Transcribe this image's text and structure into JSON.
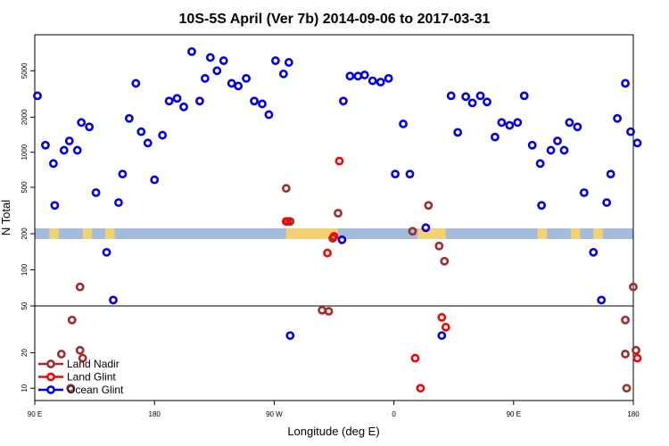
{
  "chart_data": {
    "type": "scatter",
    "title": "10S-5S April (Ver 7b)   2014-09-06 to 2017-03-31",
    "xlabel": "Longitude (deg E)",
    "ylabel": "N Total",
    "x_range": [
      90,
      540
    ],
    "x_ticks": [
      {
        "value": 90,
        "label": "90 E"
      },
      {
        "value": 180,
        "label": "180"
      },
      {
        "value": 270,
        "label": "90 W"
      },
      {
        "value": 360,
        "label": "0"
      },
      {
        "value": 450,
        "label": "90 E"
      },
      {
        "value": 540,
        "label": "180"
      }
    ],
    "upper_panel": {
      "scale": "log",
      "ylim": [
        200,
        10000
      ],
      "y_ticks": [
        {
          "value": 200,
          "label": "200"
        },
        {
          "value": 500,
          "label": "500"
        },
        {
          "value": 1000,
          "label": "1000"
        },
        {
          "value": 2000,
          "label": "2000"
        },
        {
          "value": 5000,
          "label": "5000"
        }
      ]
    },
    "middle_panel": {
      "scale": "log",
      "ylim": [
        50,
        200
      ],
      "y_ticks": [
        {
          "value": 100,
          "label": "100"
        },
        {
          "value": 50,
          "label": "50"
        }
      ]
    },
    "lower_panel": {
      "scale": "log",
      "ylim": [
        8,
        50
      ],
      "y_ticks": [
        {
          "value": 20,
          "label": "20"
        },
        {
          "value": 10,
          "label": "10"
        }
      ]
    },
    "legend_position": "bottom-left",
    "series": [
      {
        "name": "Land Nadir",
        "color": "#a52a2a",
        "points": [
          [
            110,
            19.5
          ],
          [
            117,
            10
          ],
          [
            118,
            38
          ],
          [
            124,
            72
          ],
          [
            124,
            21
          ],
          [
            126,
            18
          ],
          [
            279,
            490
          ],
          [
            280,
            255
          ],
          [
            282,
            255
          ],
          [
            306,
            46
          ],
          [
            311,
            45
          ],
          [
            314,
            183
          ],
          [
            318,
            300
          ],
          [
            374,
            210
          ],
          [
            386,
            350
          ],
          [
            394,
            158
          ],
          [
            398,
            118
          ],
          [
            534,
            38
          ],
          [
            534,
            19.5
          ],
          [
            535,
            10
          ],
          [
            540,
            72
          ],
          [
            542,
            21
          ]
        ]
      },
      {
        "name": "Land Glint",
        "color": "#ff0000",
        "points": [
          [
            279,
            255
          ],
          [
            310,
            138
          ],
          [
            315,
            190
          ],
          [
            319,
            840
          ],
          [
            376,
            18
          ],
          [
            380,
            10
          ],
          [
            396,
            40
          ],
          [
            399,
            33
          ],
          [
            543,
            18
          ]
        ]
      },
      {
        "name": "Ocean Glint",
        "color": "#0000ee",
        "points": [
          [
            92,
            3050
          ],
          [
            98,
            1150
          ],
          [
            104,
            800
          ],
          [
            105,
            350
          ],
          [
            112,
            1040
          ],
          [
            116,
            1250
          ],
          [
            122,
            1040
          ],
          [
            125,
            1800
          ],
          [
            131,
            1650
          ],
          [
            136,
            450
          ],
          [
            144,
            140
          ],
          [
            149,
            56
          ],
          [
            153,
            370
          ],
          [
            156,
            650
          ],
          [
            161,
            1950
          ],
          [
            166,
            3900
          ],
          [
            170,
            1500
          ],
          [
            175,
            1200
          ],
          [
            180,
            580
          ],
          [
            186,
            1400
          ],
          [
            191,
            2750
          ],
          [
            197,
            2900
          ],
          [
            202,
            2450
          ],
          [
            208,
            7300
          ],
          [
            214,
            2750
          ],
          [
            218,
            4300
          ],
          [
            222,
            6500
          ],
          [
            227,
            5000
          ],
          [
            232,
            6100
          ],
          [
            238,
            3900
          ],
          [
            243,
            3700
          ],
          [
            249,
            4300
          ],
          [
            255,
            2750
          ],
          [
            261,
            2600
          ],
          [
            266,
            2100
          ],
          [
            271,
            6100
          ],
          [
            277,
            4700
          ],
          [
            281,
            5900
          ],
          [
            282,
            28
          ],
          [
            321,
            178
          ],
          [
            322,
            2750
          ],
          [
            327,
            4500
          ],
          [
            333,
            4500
          ],
          [
            338,
            4600
          ],
          [
            344,
            4100
          ],
          [
            350,
            4000
          ],
          [
            356,
            4300
          ],
          [
            361,
            650
          ],
          [
            367,
            1750
          ],
          [
            372,
            650
          ],
          [
            384,
            225
          ],
          [
            396,
            28
          ],
          [
            403,
            3050
          ],
          [
            408,
            1480
          ],
          [
            414,
            3000
          ],
          [
            419,
            2650
          ],
          [
            425,
            3050
          ],
          [
            430,
            2700
          ],
          [
            436,
            1350
          ],
          [
            441,
            1800
          ],
          [
            447,
            1700
          ],
          [
            453,
            1800
          ],
          [
            458,
            3050
          ],
          [
            464,
            1150
          ],
          [
            470,
            800
          ],
          [
            471,
            350
          ],
          [
            478,
            1040
          ],
          [
            483,
            1250
          ],
          [
            488,
            1040
          ],
          [
            492,
            1800
          ],
          [
            498,
            1650
          ],
          [
            503,
            450
          ],
          [
            510,
            140
          ],
          [
            516,
            56
          ],
          [
            520,
            370
          ],
          [
            523,
            650
          ],
          [
            528,
            1950
          ],
          [
            534,
            3900
          ],
          [
            538,
            1500
          ],
          [
            543,
            1200
          ]
        ]
      }
    ]
  }
}
